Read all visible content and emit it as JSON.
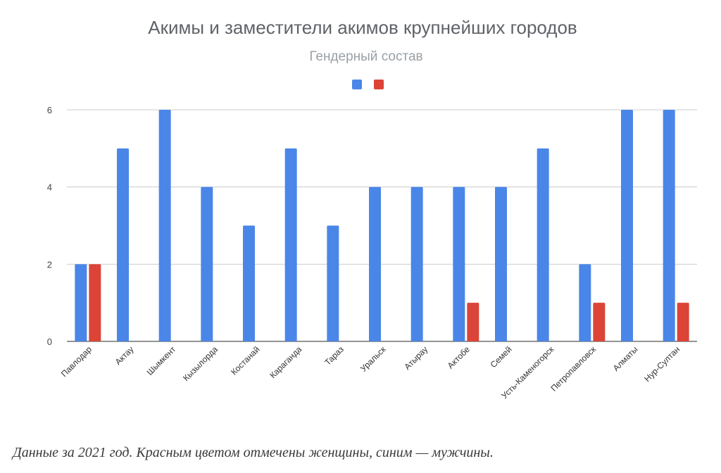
{
  "chart_data": {
    "type": "bar",
    "title": "Акимы и заместители акимов крупнейших городов",
    "subtitle": "Гендерный состав",
    "categories": [
      "Павлодар",
      "Актау",
      "Шымкент",
      "Кызылорда",
      "Костанай",
      "Караганда",
      "Тараз",
      "Уральск",
      "Атырау",
      "Актобе",
      "Семей",
      "Усть-Каменогорск",
      "Петропавловск",
      "Алматы",
      "Нур-Султан"
    ],
    "series": [
      {
        "color": "#4a86e8",
        "values": [
          2,
          5,
          6,
          4,
          3,
          5,
          3,
          4,
          4,
          4,
          4,
          5,
          2,
          6,
          6
        ]
      },
      {
        "color": "#db4437",
        "values": [
          2,
          0,
          0,
          0,
          0,
          0,
          0,
          0,
          0,
          1,
          0,
          0,
          1,
          0,
          1
        ]
      }
    ],
    "ylim": [
      0,
      6
    ],
    "yticks": [
      "0",
      "2",
      "4",
      "6"
    ],
    "grid": true,
    "legend": "top-center"
  },
  "caption": "Данные за 2021 год. Красным цветом отмечены женщины, синим — мужчины."
}
